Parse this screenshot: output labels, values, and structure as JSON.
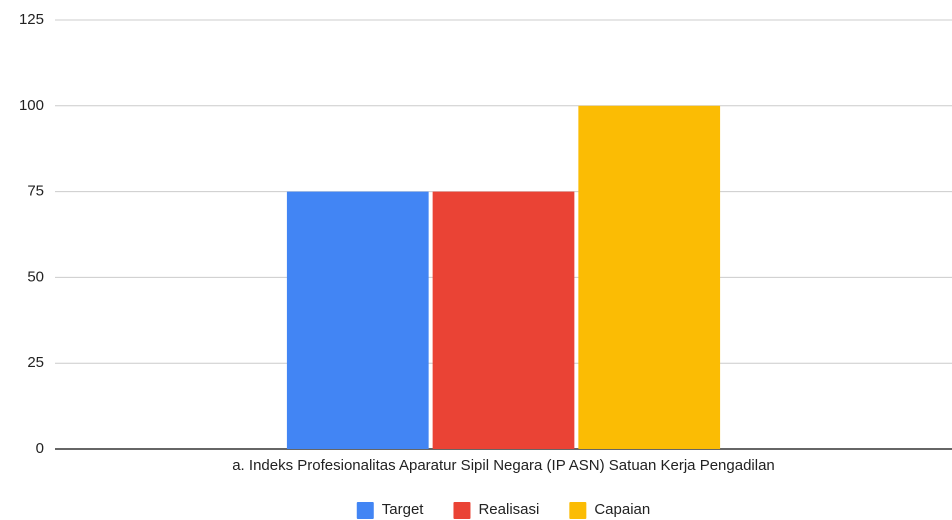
{
  "chart_data": {
    "type": "bar",
    "categories": [
      "a.  Indeks Profesionalitas Aparatur Sipil Negara (IP ASN) Satuan Kerja Pengadilan"
    ],
    "series": [
      {
        "name": "Target",
        "color": "#4285f4",
        "values": [
          75
        ]
      },
      {
        "name": "Realisasi",
        "color": "#ea4335",
        "values": [
          75
        ]
      },
      {
        "name": "Capaian",
        "color": "#fbbc04",
        "values": [
          100
        ]
      }
    ],
    "ylim": [
      0,
      125
    ],
    "yticks": [
      0,
      25,
      50,
      75,
      100,
      125
    ],
    "grid": true,
    "legend": "bottom"
  }
}
